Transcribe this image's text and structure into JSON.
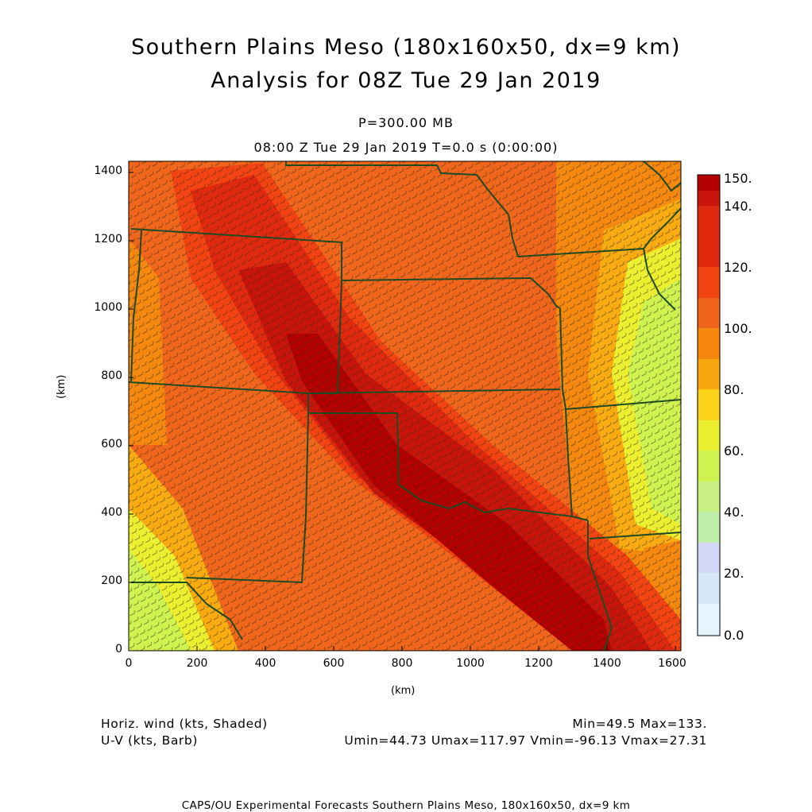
{
  "header": {
    "title_line1": "Southern Plains Meso (180x160x50, dx=9 km)",
    "title_line2": "Analysis for 08Z Tue 29 Jan 2019",
    "level": "P=300.00 MB",
    "valid_time": "08:00 Z Tue 29 Jan 2019    T=0.0 s (0:00:00)"
  },
  "axes": {
    "x_label": "(km)",
    "y_label": "(km)",
    "x_ticks": [
      "0",
      "200",
      "400",
      "600",
      "800",
      "1000",
      "1200",
      "1400",
      "1600"
    ],
    "y_ticks": [
      "0",
      "200",
      "400",
      "600",
      "800",
      "1000",
      "1200",
      "1400"
    ]
  },
  "colorbar": {
    "labels": [
      "150.",
      "140.",
      "120.",
      "100.",
      "80.",
      "60.",
      "40.",
      "20.",
      "0.0"
    ],
    "colors": [
      "#b30000",
      "#c8150b",
      "#e02a10",
      "#f24412",
      "#f0631a",
      "#f5870f",
      "#f9a70f",
      "#fad21a",
      "#ecef30",
      "#cef24f",
      "#c8f082",
      "#bfeea8",
      "#d2d8f6",
      "#d6e8f8",
      "#e6f4fd"
    ]
  },
  "legend": {
    "field1": "Horiz. wind (kts, Shaded)",
    "field2": "U-V (kts, Barb)",
    "minmax": "Min=49.5 Max=133.",
    "uvstats": "Umin=44.73 Umax=117.97 Vmin=-96.13 Vmax=27.31"
  },
  "footer": "CAPS/OU Experimental Forecasts  Southern Plains Meso, 180x160x50, dx=9 km"
}
